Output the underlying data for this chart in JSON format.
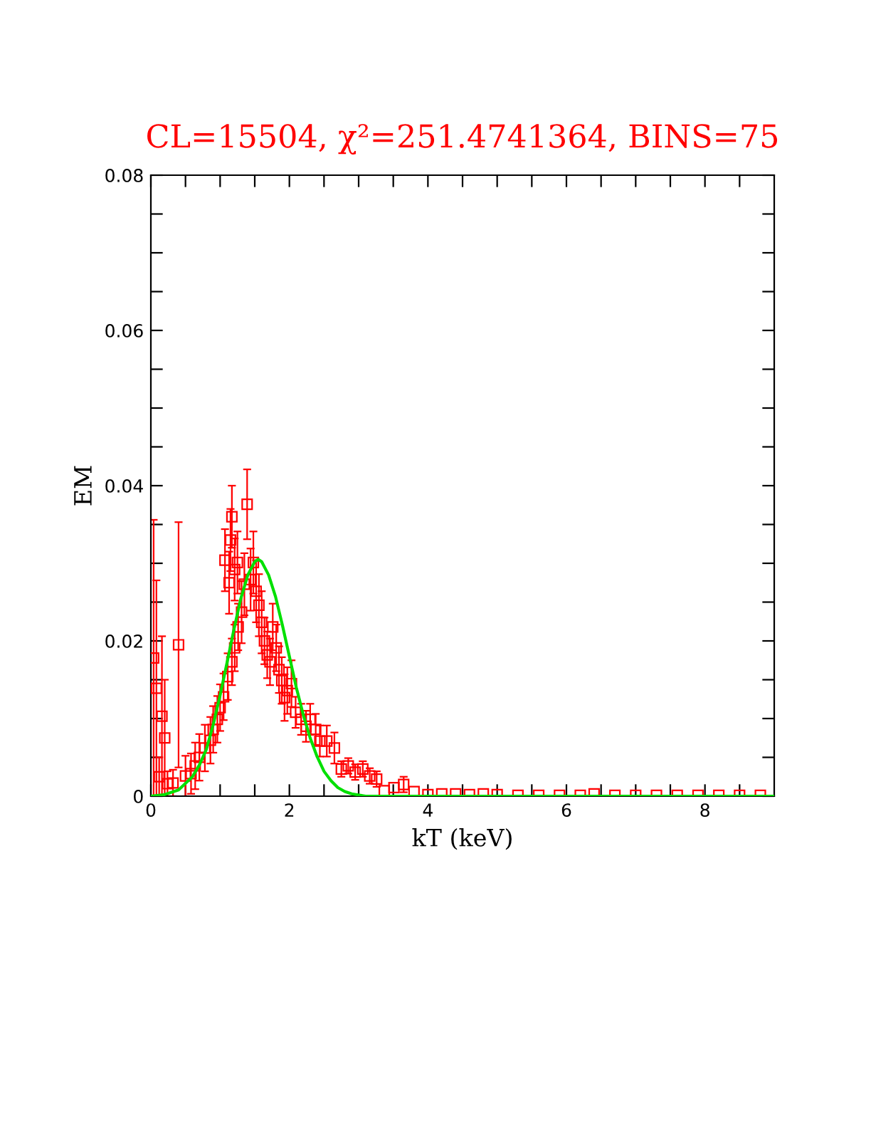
{
  "chart_data": {
    "type": "scatter",
    "title": "CL=15504, χ²=251.4741364, BINS=75",
    "xlabel": "kT (keV)",
    "ylabel": "EM",
    "xlim": [
      0,
      9
    ],
    "ylim": [
      0,
      0.08
    ],
    "xticks": [
      0,
      {
        "value": 0.5,
        "label": null
      },
      {
        "value": 1,
        "label": null
      },
      {
        "value": 1.5,
        "label": null
      },
      2,
      {
        "value": 2.5,
        "label": null
      },
      {
        "value": 3,
        "label": null
      },
      {
        "value": 3.5,
        "label": null
      },
      4,
      {
        "value": 4.5,
        "label": null
      },
      {
        "value": 5,
        "label": null
      },
      {
        "value": 5.5,
        "label": null
      },
      6,
      {
        "value": 6.5,
        "label": null
      },
      {
        "value": 7,
        "label": null
      },
      {
        "value": 7.5,
        "label": null
      },
      8,
      {
        "value": 8.5,
        "label": null
      }
    ],
    "yticks": [
      0,
      {
        "value": 0.005,
        "label": null
      },
      {
        "value": 0.01,
        "label": null
      },
      {
        "value": 0.015,
        "label": null
      },
      0.02,
      {
        "value": 0.025,
        "label": null
      },
      {
        "value": 0.03,
        "label": null
      },
      {
        "value": 0.035,
        "label": null
      },
      0.04,
      {
        "value": 0.045,
        "label": null
      },
      {
        "value": 0.05,
        "label": null
      },
      {
        "value": 0.055,
        "label": null
      },
      0.06,
      {
        "value": 0.065,
        "label": null
      },
      {
        "value": 0.07,
        "label": null
      },
      {
        "value": 0.075,
        "label": null
      },
      0.08
    ],
    "grid": false,
    "legend": false,
    "series": [
      {
        "color": "#ff0000",
        "marker": "square",
        "x": [
          0.04,
          0.08,
          0.12,
          0.16,
          0.2,
          0.24,
          0.32,
          0.4,
          0.5,
          0.58,
          0.64,
          0.7,
          0.78,
          0.86,
          0.9,
          0.96,
          1.0,
          1.05,
          1.11,
          1.17,
          1.21,
          1.26,
          1.07,
          1.13,
          1.15,
          1.17,
          1.21,
          1.25,
          1.31,
          1.35,
          1.39,
          1.44,
          1.48,
          1.52,
          1.56,
          1.6,
          1.64,
          1.68,
          1.72,
          1.76,
          1.81,
          1.85,
          1.89,
          1.93,
          1.97,
          2.03,
          2.09,
          2.17,
          2.24,
          2.3,
          2.38,
          2.44,
          2.54,
          2.65,
          2.75,
          2.85,
          2.95,
          3.06,
          3.16,
          3.26,
          3.37,
          3.51,
          3.65,
          3.8,
          4.0,
          4.2,
          4.4,
          4.6,
          4.8,
          5.0,
          5.3,
          5.6,
          5.9,
          6.2,
          6.4,
          6.7,
          7.0,
          7.3,
          7.6,
          7.9,
          8.2,
          8.5,
          8.8
        ],
        "values": [
          0.0178,
          0.0139,
          0.0025,
          0.0103,
          0.0075,
          0.0016,
          0.0017,
          0.0195,
          0.0026,
          0.0029,
          0.0039,
          0.005,
          0.0062,
          0.0072,
          0.0086,
          0.0099,
          0.0114,
          0.0128,
          0.0154,
          0.0173,
          0.0191,
          0.0218,
          0.0304,
          0.0275,
          0.033,
          0.036,
          0.0292,
          0.0301,
          0.0237,
          0.0273,
          0.0376,
          0.0279,
          0.0301,
          0.0264,
          0.0246,
          0.0224,
          0.02,
          0.0182,
          0.0173,
          0.0218,
          0.0191,
          0.0163,
          0.0149,
          0.0127,
          0.0136,
          0.0145,
          0.0108,
          0.0099,
          0.009,
          0.0099,
          0.0086,
          0.0071,
          0.0071,
          0.0062,
          0.0035,
          0.0039,
          0.0031,
          0.0035,
          0.0026,
          0.0022,
          0.0007,
          0.0011,
          0.0015,
          0.0006,
          0.0002,
          0.0003,
          0.0003,
          0.0002,
          0.0003,
          0.0002,
          0.0001,
          0.0001,
          0.0001,
          0.0001,
          0.0003,
          0.0001,
          0.0001,
          0.0001,
          0.0001,
          0.0001,
          0.0001,
          0.0001,
          0.0001
        ],
        "errors": [
          0.0178,
          0.0139,
          0.0025,
          0.0103,
          0.0075,
          0.0016,
          0.0017,
          0.0158,
          0.0026,
          0.0026,
          0.003,
          0.003,
          0.003,
          0.003,
          0.003,
          0.003,
          0.003,
          0.003,
          0.003,
          0.003,
          0.003,
          0.003,
          0.004,
          0.004,
          0.004,
          0.004,
          0.004,
          0.004,
          0.004,
          0.004,
          0.0045,
          0.004,
          0.004,
          0.004,
          0.004,
          0.004,
          0.003,
          0.003,
          0.003,
          0.003,
          0.003,
          0.003,
          0.003,
          0.003,
          0.003,
          0.003,
          0.002,
          0.002,
          0.002,
          0.002,
          0.002,
          0.002,
          0.002,
          0.002,
          0.001,
          0.001,
          0.001,
          0.001,
          0.001,
          0.001,
          null,
          null,
          0.001,
          null,
          null,
          null,
          null,
          null,
          null,
          null,
          null,
          null,
          null,
          null,
          null,
          null,
          null,
          null,
          null,
          null,
          null,
          null,
          null
        ]
      },
      {
        "type": "line",
        "color": "#00e000",
        "marker": "none",
        "line_style": "solid",
        "x": [
          0,
          0.2,
          0.4,
          0.6,
          0.7,
          0.8,
          0.9,
          1.0,
          1.1,
          1.2,
          1.3,
          1.4,
          1.5,
          1.55,
          1.6,
          1.7,
          1.8,
          1.9,
          2.0,
          2.1,
          2.2,
          2.3,
          2.4,
          2.5,
          2.6,
          2.7,
          2.8,
          2.9,
          3.1,
          4,
          6,
          9
        ],
        "values": [
          0,
          0.0002,
          0.0008,
          0.0025,
          0.004,
          0.006,
          0.0092,
          0.013,
          0.0172,
          0.0215,
          0.0255,
          0.0285,
          0.0302,
          0.0305,
          0.0302,
          0.0285,
          0.0257,
          0.022,
          0.018,
          0.014,
          0.0105,
          0.0075,
          0.0051,
          0.0032,
          0.002,
          0.0011,
          0.0006,
          0.0003,
          0,
          0,
          0,
          0
        ]
      }
    ]
  }
}
